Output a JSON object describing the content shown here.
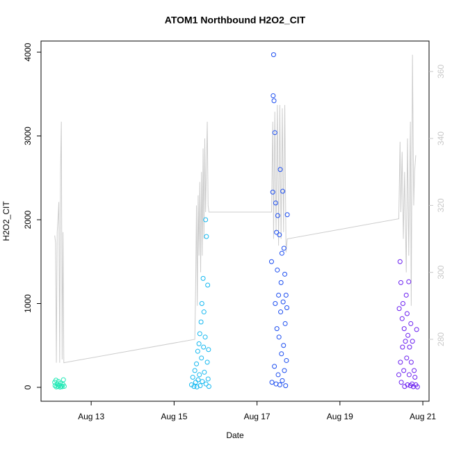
{
  "chart_data": {
    "type": "scatter",
    "title": "ATOM1 Northbound H2O2_CIT",
    "x_label": "Date",
    "y_label": "H2O2_CIT",
    "xlim": [
      11.79,
      21.15
    ],
    "ylim": [
      -166,
      4133
    ],
    "y2lim": [
      261.5,
      369.1
    ],
    "xticks": [
      {
        "value": 13,
        "label": "Aug 13"
      },
      {
        "value": 15,
        "label": "Aug 15"
      },
      {
        "value": 17,
        "label": "Aug 17"
      },
      {
        "value": 19,
        "label": "Aug 19"
      },
      {
        "value": 21,
        "label": "Aug 21"
      }
    ],
    "yticks": [
      0,
      1000,
      2000,
      3000,
      4000
    ],
    "y2ticks": [
      280,
      300,
      320,
      340,
      360
    ],
    "y2_color": "#c8c8c8",
    "series": [
      {
        "type": "line",
        "axis": "y2",
        "color": "#cccccc",
        "x": [
          12.12,
          12.14,
          12.16,
          12.18,
          12.2,
          12.22,
          12.24,
          12.26,
          12.28,
          12.3,
          12.32,
          12.34,
          15.5,
          15.52,
          15.54,
          15.56,
          15.58,
          15.6,
          15.62,
          15.64,
          15.66,
          15.68,
          15.7,
          15.72,
          15.74,
          15.76,
          15.8,
          15.82,
          15.84,
          17.35,
          17.38,
          17.4,
          17.43,
          17.46,
          17.49,
          17.52,
          17.55,
          17.58,
          17.61,
          17.64,
          17.67,
          17.7,
          17.73,
          20.42,
          20.45,
          20.47,
          20.5,
          20.53,
          20.56,
          20.6,
          20.63,
          20.66,
          20.7,
          20.72,
          20.75,
          20.78,
          20.8,
          20.83
        ],
        "values": [
          311,
          309,
          273,
          312,
          316,
          321,
          273,
          330,
          345,
          274,
          312,
          273,
          280,
          296,
          320,
          290,
          323,
          305,
          327,
          300,
          330,
          305,
          337,
          310,
          340,
          318,
          345,
          320,
          318,
          318,
          345,
          310,
          348,
          312,
          350,
          308,
          350,
          310,
          349,
          312,
          350,
          306,
          310,
          316,
          339,
          318,
          336,
          310,
          330,
          300,
          340,
          305,
          345,
          290,
          365,
          320,
          330,
          335
        ]
      },
      {
        "type": "scatter",
        "color": "#1ee8b4",
        "x": [
          12.12,
          12.13,
          12.15,
          12.16,
          12.18,
          12.2,
          12.21,
          12.23,
          12.25,
          12.26,
          12.28,
          12.3,
          12.32,
          12.33,
          12.35
        ],
        "values": [
          60,
          20,
          85,
          5,
          40,
          10,
          70,
          25,
          3,
          50,
          15,
          8,
          35,
          90,
          12
        ]
      },
      {
        "type": "scatter",
        "color": "#14b8f0",
        "x": [
          15.42,
          15.45,
          15.48,
          15.5,
          15.52,
          15.54,
          15.55,
          15.57,
          15.58,
          15.6,
          15.61,
          15.62,
          15.63,
          15.65,
          15.66,
          15.67,
          15.68,
          15.7,
          15.71,
          15.72,
          15.73,
          15.75,
          15.76,
          15.77,
          15.78,
          15.8,
          15.81,
          15.82,
          15.83,
          15.84
        ],
        "values": [
          30,
          120,
          10,
          200,
          60,
          280,
          5,
          430,
          90,
          520,
          150,
          640,
          20,
          780,
          350,
          1000,
          70,
          1300,
          480,
          900,
          180,
          600,
          2000,
          40,
          1800,
          300,
          1220,
          100,
          450,
          10
        ]
      },
      {
        "type": "scatter",
        "color": "#1a4cf0",
        "x": [
          17.35,
          17.36,
          17.38,
          17.39,
          17.4,
          17.41,
          17.42,
          17.43,
          17.44,
          17.45,
          17.46,
          17.47,
          17.48,
          17.49,
          17.5,
          17.51,
          17.52,
          17.53,
          17.54,
          17.55,
          17.56,
          17.57,
          17.58,
          17.59,
          17.6,
          17.61,
          17.62,
          17.63,
          17.64,
          17.65,
          17.66,
          17.67,
          17.68,
          17.69,
          17.7,
          17.71,
          17.72,
          17.73
        ],
        "values": [
          1500,
          60,
          2330,
          3480,
          3970,
          3420,
          250,
          3040,
          1000,
          2200,
          40,
          1850,
          700,
          1400,
          2050,
          150,
          1100,
          600,
          1820,
          30,
          2600,
          900,
          1250,
          400,
          1600,
          80,
          2340,
          1020,
          500,
          1660,
          200,
          1350,
          760,
          20,
          1100,
          320,
          950,
          2060
        ]
      },
      {
        "type": "scatter",
        "color": "#6a1ef0",
        "x": [
          20.42,
          20.43,
          20.45,
          20.46,
          20.47,
          20.48,
          20.5,
          20.51,
          20.52,
          20.54,
          20.55,
          20.56,
          20.58,
          20.6,
          20.61,
          20.62,
          20.63,
          20.64,
          20.66,
          20.67,
          20.68,
          20.7,
          20.71,
          20.72,
          20.74,
          20.75,
          20.77,
          20.79,
          20.81,
          20.83,
          20.85,
          20.87
        ],
        "values": [
          150,
          940,
          1500,
          300,
          1250,
          60,
          820,
          480,
          1000,
          200,
          700,
          10,
          550,
          1100,
          350,
          880,
          30,
          620,
          1260,
          150,
          480,
          20,
          760,
          300,
          40,
          550,
          8,
          200,
          120,
          30,
          690,
          5
        ]
      }
    ]
  }
}
